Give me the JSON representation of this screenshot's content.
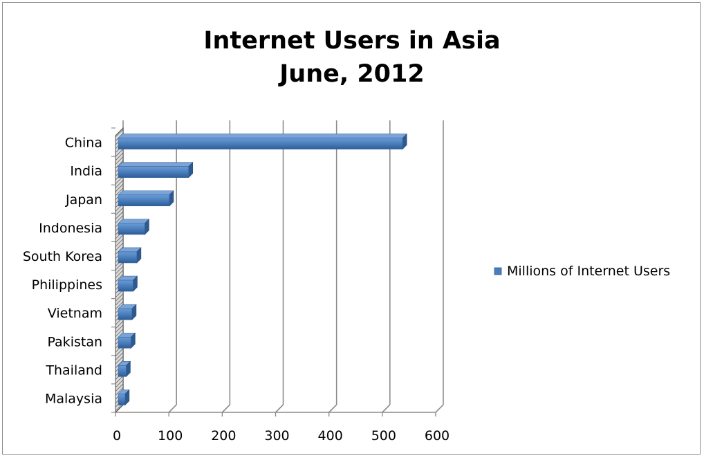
{
  "chart_data": {
    "type": "bar",
    "orientation": "horizontal",
    "title_lines": [
      "Internet Users in Asia",
      "June, 2012"
    ],
    "categories": [
      "China",
      "India",
      "Japan",
      "Indonesia",
      "South Korea",
      "Philippines",
      "Vietnam",
      "Pakistan",
      "Thailand",
      "Malaysia"
    ],
    "series": [
      {
        "name": "Millions of Internet Users",
        "values": [
          538,
          137,
          101,
          55,
          40,
          33,
          31,
          29,
          20,
          18
        ]
      }
    ],
    "xlim": [
      0,
      600
    ],
    "x_ticks": [
      0,
      100,
      200,
      300,
      400,
      500,
      600
    ],
    "x_tick_labels": [
      "0",
      "100",
      "200",
      "300",
      "400",
      "500",
      "600"
    ],
    "gridlines": true,
    "legend_position": "right",
    "colors": {
      "bar_front": "#4a7ebb",
      "bar_top": "#7ba3d6",
      "bar_side": "#2f5a8f",
      "grid": "#8c8c8c"
    }
  }
}
